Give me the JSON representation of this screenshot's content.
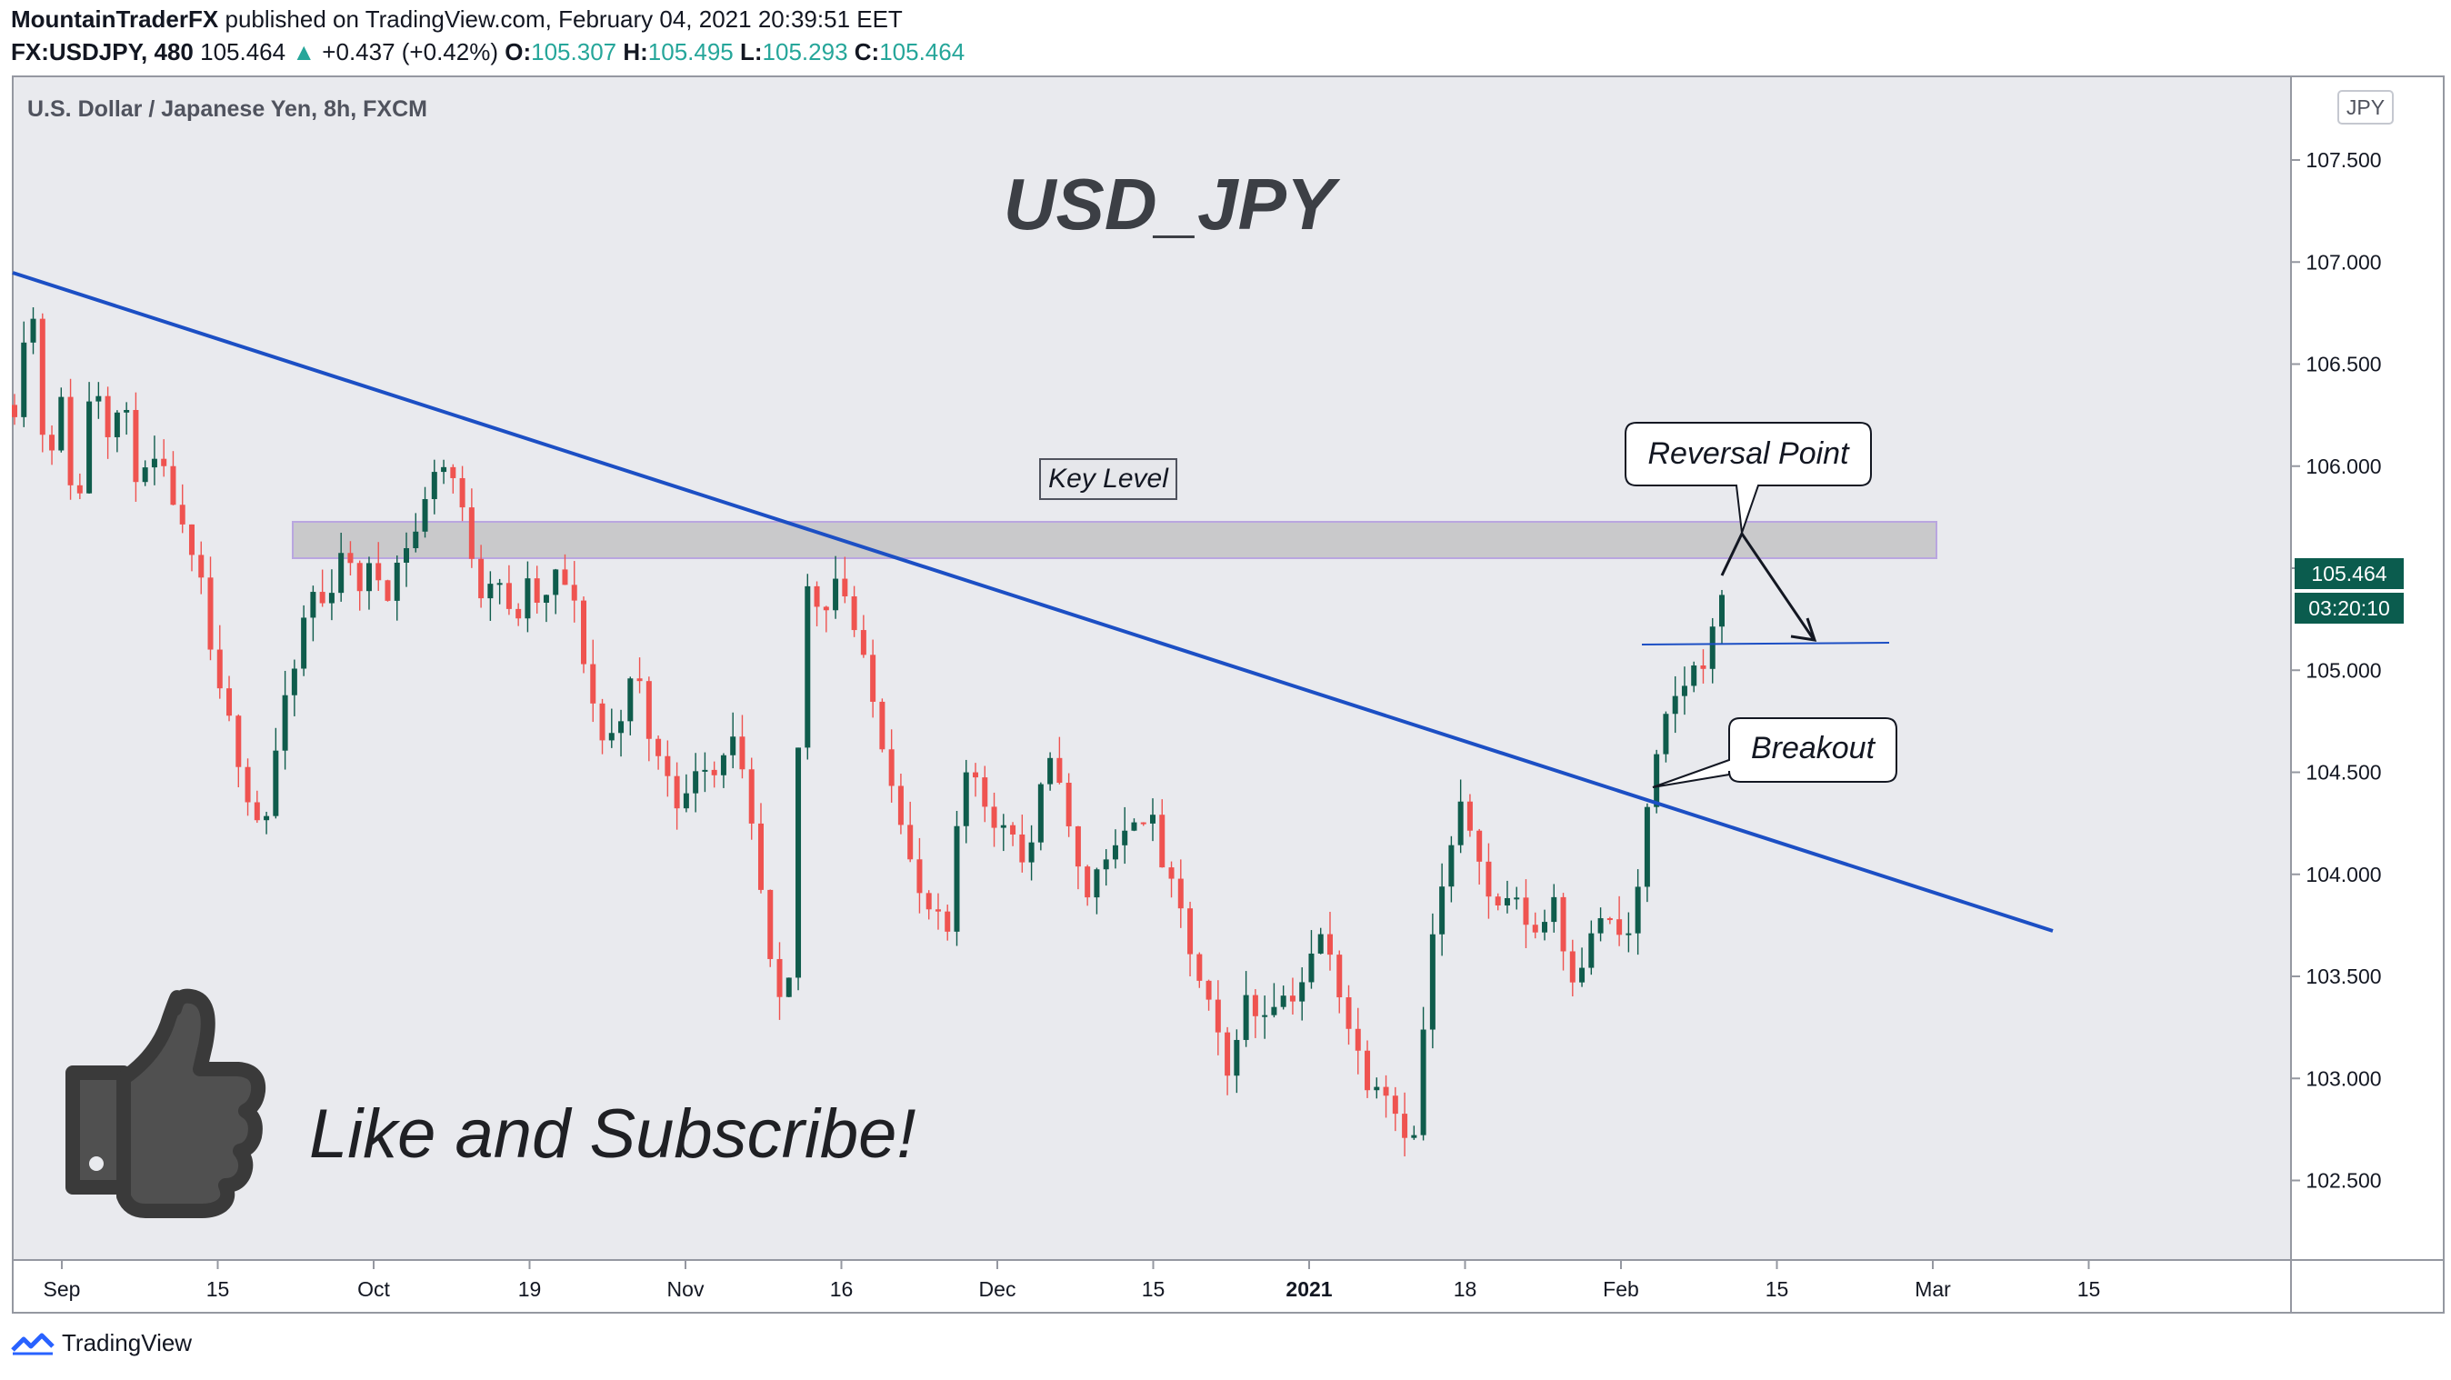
{
  "header": {
    "publisher": "MountainTraderFX",
    "published_text": "published on TradingView.com, February 04, 2021 20:39:51 EET",
    "symbol": "FX:USDJPY, 480",
    "last": "105.464",
    "change": "+0.437 (+0.42%)",
    "open_label": "O:",
    "open": "105.307",
    "high_label": "H:",
    "high": "105.495",
    "low_label": "L:",
    "low": "105.293",
    "close_label": "C:",
    "close": "105.464"
  },
  "chart_title": "U.S. Dollar / Japanese Yen, 8h, FXCM",
  "currency_badge": "JPY",
  "footer_brand": "TradingView",
  "colors": {
    "up": "#26a69a",
    "up_candle": "#0f5c4c",
    "down": "#ef5350",
    "trendline": "#1c4fc4",
    "bg": "#e9eaee"
  },
  "icons": [
    "thumbs-up-icon",
    "tradingview-logo-icon"
  ],
  "chart_data": {
    "type": "candlestick",
    "title": "U.S. Dollar / Japanese Yen, 8h, FXCM",
    "y_ticks": [
      "107.500",
      "107.000",
      "106.500",
      "106.000",
      "105.500",
      "105.000",
      "104.500",
      "104.000",
      "103.500",
      "103.000",
      "102.500"
    ],
    "ylim": [
      102.1,
      107.8
    ],
    "x_ticks": [
      {
        "label": "Sep",
        "bold": false
      },
      {
        "label": "15",
        "bold": false
      },
      {
        "label": "Oct",
        "bold": false
      },
      {
        "label": "19",
        "bold": false
      },
      {
        "label": "Nov",
        "bold": false
      },
      {
        "label": "16",
        "bold": false
      },
      {
        "label": "Dec",
        "bold": false
      },
      {
        "label": "15",
        "bold": false
      },
      {
        "label": "2021",
        "bold": true
      },
      {
        "label": "18",
        "bold": false
      },
      {
        "label": "Feb",
        "bold": false
      },
      {
        "label": "15",
        "bold": false
      },
      {
        "label": "Mar",
        "bold": false
      },
      {
        "label": "15",
        "bold": false
      }
    ],
    "last_price": "105.464",
    "countdown": "03:20:10",
    "price_path": [
      [
        0,
        106.3
      ],
      [
        10,
        106.9
      ],
      [
        20,
        106.0
      ],
      [
        30,
        106.3
      ],
      [
        40,
        105.7
      ],
      [
        50,
        106.5
      ],
      [
        60,
        106.2
      ],
      [
        70,
        106.3
      ],
      [
        80,
        105.9
      ],
      [
        90,
        106.0
      ],
      [
        100,
        105.9
      ],
      [
        110,
        105.6
      ],
      [
        120,
        105.4
      ],
      [
        130,
        104.9
      ],
      [
        140,
        104.7
      ],
      [
        150,
        104.4
      ],
      [
        160,
        104.2
      ],
      [
        170,
        104.7
      ],
      [
        180,
        105.0
      ],
      [
        190,
        105.4
      ],
      [
        200,
        105.3
      ],
      [
        210,
        105.6
      ],
      [
        220,
        105.4
      ],
      [
        230,
        105.5
      ],
      [
        240,
        105.4
      ],
      [
        250,
        105.6
      ],
      [
        260,
        105.7
      ],
      [
        270,
        106.0
      ],
      [
        280,
        106.0
      ],
      [
        290,
        105.7
      ],
      [
        300,
        105.4
      ],
      [
        310,
        105.5
      ],
      [
        320,
        105.2
      ],
      [
        330,
        105.4
      ],
      [
        340,
        105.3
      ],
      [
        350,
        105.5
      ],
      [
        360,
        105.3
      ],
      [
        370,
        104.9
      ],
      [
        380,
        104.6
      ],
      [
        390,
        104.8
      ],
      [
        400,
        105.0
      ],
      [
        410,
        104.6
      ],
      [
        420,
        104.5
      ],
      [
        430,
        104.3
      ],
      [
        440,
        104.6
      ],
      [
        450,
        104.5
      ],
      [
        460,
        104.7
      ],
      [
        470,
        104.4
      ],
      [
        480,
        103.9
      ],
      [
        490,
        103.3
      ],
      [
        500,
        103.5
      ],
      [
        505,
        104.9
      ],
      [
        510,
        105.4
      ],
      [
        520,
        105.3
      ],
      [
        530,
        105.5
      ],
      [
        540,
        105.2
      ],
      [
        550,
        104.9
      ],
      [
        560,
        104.6
      ],
      [
        570,
        104.3
      ],
      [
        580,
        103.9
      ],
      [
        590,
        103.8
      ],
      [
        600,
        103.7
      ],
      [
        610,
        104.5
      ],
      [
        620,
        104.5
      ],
      [
        630,
        104.2
      ],
      [
        640,
        104.3
      ],
      [
        650,
        104.0
      ],
      [
        660,
        104.4
      ],
      [
        670,
        104.6
      ],
      [
        680,
        104.1
      ],
      [
        690,
        103.9
      ],
      [
        700,
        104.1
      ],
      [
        710,
        104.1
      ],
      [
        720,
        104.3
      ],
      [
        730,
        104.3
      ],
      [
        740,
        104.0
      ],
      [
        750,
        103.8
      ],
      [
        760,
        103.5
      ],
      [
        770,
        103.3
      ],
      [
        780,
        103.0
      ],
      [
        790,
        103.4
      ],
      [
        800,
        103.3
      ],
      [
        810,
        103.4
      ],
      [
        820,
        103.4
      ],
      [
        830,
        103.5
      ],
      [
        840,
        103.7
      ],
      [
        850,
        103.5
      ],
      [
        860,
        103.2
      ],
      [
        870,
        103.0
      ],
      [
        880,
        103.0
      ],
      [
        890,
        102.8
      ],
      [
        900,
        102.7
      ],
      [
        910,
        103.6
      ],
      [
        920,
        104.0
      ],
      [
        930,
        104.3
      ],
      [
        940,
        104.2
      ],
      [
        950,
        103.8
      ],
      [
        960,
        103.9
      ],
      [
        970,
        103.8
      ],
      [
        980,
        103.7
      ],
      [
        990,
        103.9
      ],
      [
        1000,
        103.5
      ],
      [
        1010,
        103.6
      ],
      [
        1020,
        103.8
      ],
      [
        1030,
        103.7
      ],
      [
        1040,
        103.7
      ],
      [
        1050,
        104.3
      ],
      [
        1060,
        104.7
      ],
      [
        1070,
        104.9
      ],
      [
        1080,
        105.0
      ],
      [
        1090,
        105.1
      ],
      [
        1100,
        105.46
      ]
    ]
  },
  "annotations": {
    "big_title": "USD_JPY",
    "key_level_label": "Key Level",
    "reversal_label": "Reversal Point",
    "breakout_label": "Breakout",
    "promo_text": "Like and Subscribe!"
  }
}
